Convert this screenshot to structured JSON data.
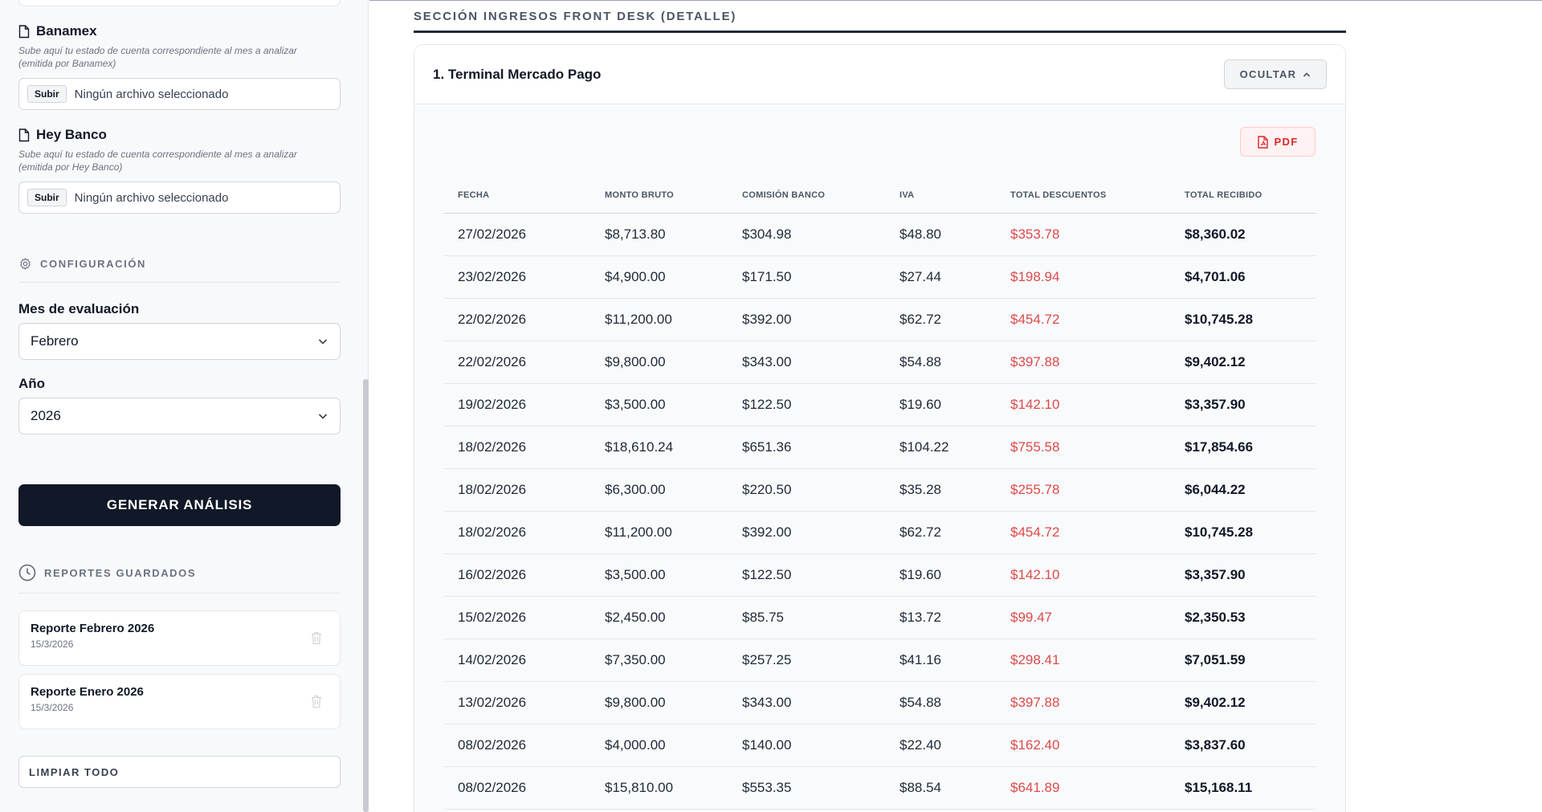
{
  "sidebar": {
    "uploads": [
      {
        "title": "Banamex",
        "hint_line1": "Sube aquí tu estado de cuenta correspondiente al mes a analizar",
        "hint_line2": "(emitida por Banamex)",
        "button": "Subir",
        "file_text": "Ningún archivo seleccionado"
      },
      {
        "title": "Hey Banco",
        "hint_line1": "Sube aquí tu estado de cuenta correspondiente al mes a analizar",
        "hint_line2": "(emitida por Hey Banco)",
        "button": "Subir",
        "file_text": "Ningún archivo seleccionado"
      }
    ],
    "config_heading": "CONFIGURACIÓN",
    "month_label": "Mes de evaluación",
    "month_value": "Febrero",
    "year_label": "Año",
    "year_value": "2026",
    "generate_button": "GENERAR ANÁLISIS",
    "reports_heading": "REPORTES GUARDADOS",
    "reports": [
      {
        "title": "Reporte Febrero 2026",
        "date": "15/3/2026"
      },
      {
        "title": "Reporte Enero 2026",
        "date": "15/3/2026"
      }
    ],
    "clear_button": "LIMPIAR TODO"
  },
  "main": {
    "section_title": "SECCIÓN INGRESOS FRONT DESK (DETALLE)",
    "panel_title": "1. Terminal Mercado Pago",
    "hide_button": "OCULTAR",
    "pdf_button": "PDF",
    "columns": [
      "FECHA",
      "MONTO BRUTO",
      "COMISIÓN BANCO",
      "IVA",
      "TOTAL DESCUENTOS",
      "TOTAL RECIBIDO"
    ],
    "rows": [
      [
        "27/02/2026",
        "$8,713.80",
        "$304.98",
        "$48.80",
        "$353.78",
        "$8,360.02"
      ],
      [
        "23/02/2026",
        "$4,900.00",
        "$171.50",
        "$27.44",
        "$198.94",
        "$4,701.06"
      ],
      [
        "22/02/2026",
        "$11,200.00",
        "$392.00",
        "$62.72",
        "$454.72",
        "$10,745.28"
      ],
      [
        "22/02/2026",
        "$9,800.00",
        "$343.00",
        "$54.88",
        "$397.88",
        "$9,402.12"
      ],
      [
        "19/02/2026",
        "$3,500.00",
        "$122.50",
        "$19.60",
        "$142.10",
        "$3,357.90"
      ],
      [
        "18/02/2026",
        "$18,610.24",
        "$651.36",
        "$104.22",
        "$755.58",
        "$17,854.66"
      ],
      [
        "18/02/2026",
        "$6,300.00",
        "$220.50",
        "$35.28",
        "$255.78",
        "$6,044.22"
      ],
      [
        "18/02/2026",
        "$11,200.00",
        "$392.00",
        "$62.72",
        "$454.72",
        "$10,745.28"
      ],
      [
        "16/02/2026",
        "$3,500.00",
        "$122.50",
        "$19.60",
        "$142.10",
        "$3,357.90"
      ],
      [
        "15/02/2026",
        "$2,450.00",
        "$85.75",
        "$13.72",
        "$99.47",
        "$2,350.53"
      ],
      [
        "14/02/2026",
        "$7,350.00",
        "$257.25",
        "$41.16",
        "$298.41",
        "$7,051.59"
      ],
      [
        "13/02/2026",
        "$9,800.00",
        "$343.00",
        "$54.88",
        "$397.88",
        "$9,402.12"
      ],
      [
        "08/02/2026",
        "$4,000.00",
        "$140.00",
        "$22.40",
        "$162.40",
        "$3,837.60"
      ],
      [
        "08/02/2026",
        "$15,810.00",
        "$553.35",
        "$88.54",
        "$641.89",
        "$15,168.11"
      ]
    ]
  },
  "colors": {
    "accent_dark": "#111827",
    "discount_red": "#dc4a4a",
    "pdf_red": "#dc2626"
  }
}
